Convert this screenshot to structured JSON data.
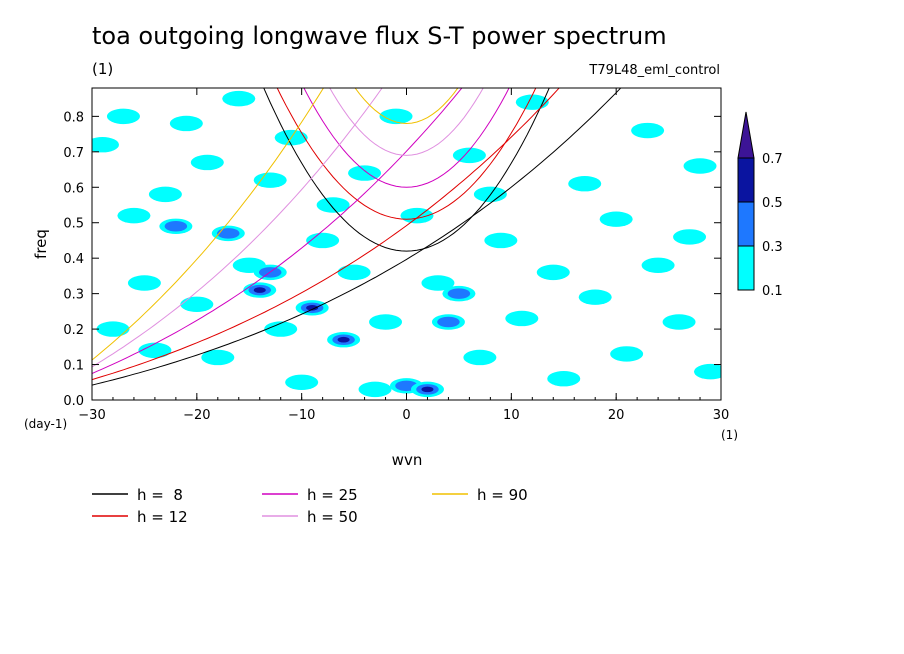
{
  "title": "toa outgoing longwave flux S-T power spectrum",
  "subtitle_left": "(1)",
  "subtitle_right": "T79L48_eml_control",
  "chart_data": {
    "type": "heatmap",
    "xlabel": "wvn",
    "ylabel": "freq",
    "x_unit": "(1)",
    "y_unit": "(day-1)",
    "xlim": [
      -30,
      30
    ],
    "ylim": [
      0,
      0.88
    ],
    "xticks": [
      -30,
      -20,
      -10,
      0,
      10,
      20,
      30
    ],
    "yticks": [
      0.0,
      0.1,
      0.2,
      0.3,
      0.4,
      0.5,
      0.6,
      0.7,
      0.8
    ],
    "colorbar": {
      "levels": [
        0.1,
        0.3,
        0.5,
        0.7
      ],
      "colors": [
        "#00ffff",
        "#1e78ff",
        "#0a14a0",
        "#3c1496"
      ]
    },
    "field_cells": [
      {
        "x": -29,
        "y": 0.72,
        "level": 1
      },
      {
        "x": -27,
        "y": 0.8,
        "level": 1
      },
      {
        "x": -26,
        "y": 0.52,
        "level": 1
      },
      {
        "x": -25,
        "y": 0.33,
        "level": 1
      },
      {
        "x": -24,
        "y": 0.14,
        "level": 1
      },
      {
        "x": -23,
        "y": 0.58,
        "level": 1
      },
      {
        "x": -22,
        "y": 0.49,
        "level": 2
      },
      {
        "x": -21,
        "y": 0.78,
        "level": 1
      },
      {
        "x": -20,
        "y": 0.27,
        "level": 1
      },
      {
        "x": -19,
        "y": 0.67,
        "level": 1
      },
      {
        "x": -18,
        "y": 0.12,
        "level": 1
      },
      {
        "x": -17,
        "y": 0.47,
        "level": 2
      },
      {
        "x": -16,
        "y": 0.85,
        "level": 1
      },
      {
        "x": -15,
        "y": 0.38,
        "level": 1
      },
      {
        "x": -14,
        "y": 0.31,
        "level": 3
      },
      {
        "x": -13,
        "y": 0.36,
        "level": 2
      },
      {
        "x": -13,
        "y": 0.62,
        "level": 1
      },
      {
        "x": -12,
        "y": 0.2,
        "level": 1
      },
      {
        "x": -11,
        "y": 0.74,
        "level": 1
      },
      {
        "x": -9,
        "y": 0.26,
        "level": 3
      },
      {
        "x": -8,
        "y": 0.45,
        "level": 1
      },
      {
        "x": -7,
        "y": 0.55,
        "level": 1
      },
      {
        "x": -6,
        "y": 0.17,
        "level": 3
      },
      {
        "x": -5,
        "y": 0.36,
        "level": 1
      },
      {
        "x": -4,
        "y": 0.64,
        "level": 1
      },
      {
        "x": -3,
        "y": 0.03,
        "level": 1
      },
      {
        "x": -2,
        "y": 0.22,
        "level": 1
      },
      {
        "x": -1,
        "y": 0.8,
        "level": 1
      },
      {
        "x": 0,
        "y": 0.04,
        "level": 2
      },
      {
        "x": 1,
        "y": 0.52,
        "level": 1
      },
      {
        "x": 2,
        "y": 0.03,
        "level": 3
      },
      {
        "x": 3,
        "y": 0.33,
        "level": 1
      },
      {
        "x": 4,
        "y": 0.22,
        "level": 2
      },
      {
        "x": 5,
        "y": 0.3,
        "level": 2
      },
      {
        "x": 6,
        "y": 0.69,
        "level": 1
      },
      {
        "x": 7,
        "y": 0.12,
        "level": 1
      },
      {
        "x": 9,
        "y": 0.45,
        "level": 1
      },
      {
        "x": 11,
        "y": 0.23,
        "level": 1
      },
      {
        "x": 12,
        "y": 0.84,
        "level": 1
      },
      {
        "x": 14,
        "y": 0.36,
        "level": 1
      },
      {
        "x": 15,
        "y": 0.06,
        "level": 1
      },
      {
        "x": 17,
        "y": 0.61,
        "level": 1
      },
      {
        "x": 18,
        "y": 0.29,
        "level": 1
      },
      {
        "x": 20,
        "y": 0.51,
        "level": 1
      },
      {
        "x": 21,
        "y": 0.13,
        "level": 1
      },
      {
        "x": 23,
        "y": 0.76,
        "level": 1
      },
      {
        "x": 24,
        "y": 0.38,
        "level": 1
      },
      {
        "x": 26,
        "y": 0.22,
        "level": 1
      },
      {
        "x": 27,
        "y": 0.46,
        "level": 1
      },
      {
        "x": 29,
        "y": 0.08,
        "level": 1
      },
      {
        "x": -28,
        "y": 0.2,
        "level": 1
      },
      {
        "x": 28,
        "y": 0.66,
        "level": 1
      },
      {
        "x": -10,
        "y": 0.05,
        "level": 1
      },
      {
        "x": 8,
        "y": 0.58,
        "level": 1
      }
    ],
    "series": [
      {
        "name": "h =  8",
        "color": "#000000",
        "h": 8
      },
      {
        "name": "h = 12",
        "color": "#e00000",
        "h": 12
      },
      {
        "name": "h = 25",
        "color": "#d000c0",
        "h": 25
      },
      {
        "name": "h = 50",
        "color": "#e090e0",
        "h": 50
      },
      {
        "name": "h = 90",
        "color": "#f0c000",
        "h": 90
      }
    ]
  }
}
